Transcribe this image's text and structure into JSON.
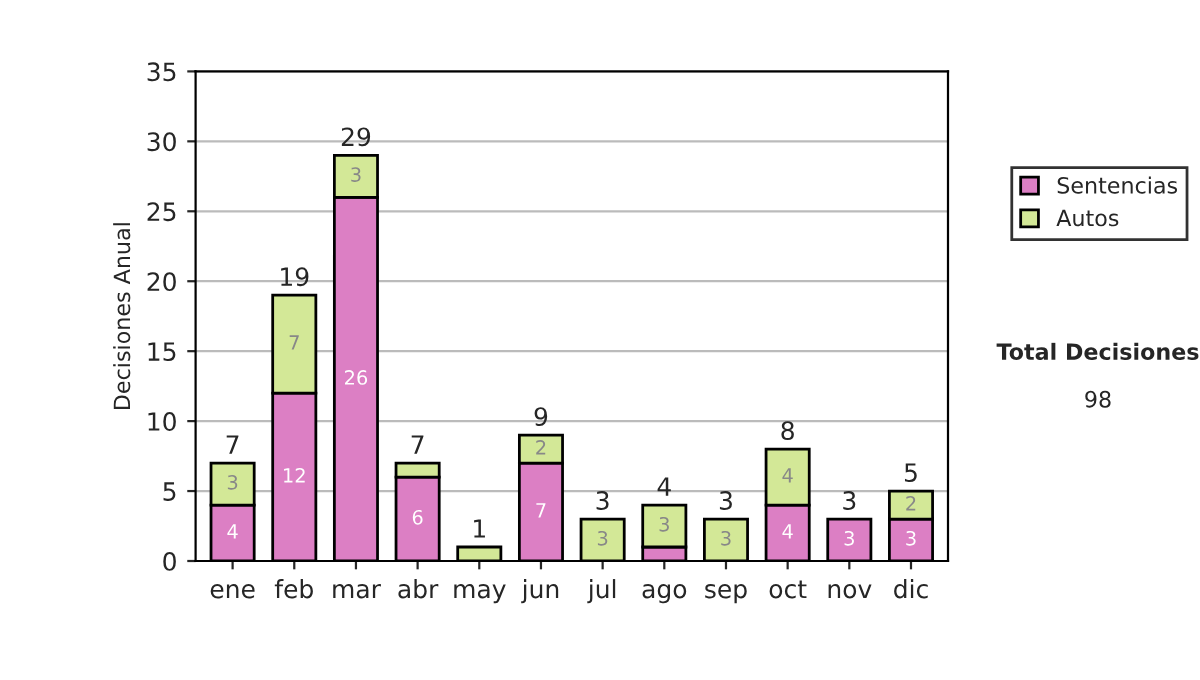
{
  "chart_data": {
    "type": "bar",
    "ylabel": "Decisiones Anual",
    "stacked": true,
    "categories": [
      "ene",
      "feb",
      "mar",
      "abr",
      "may",
      "jun",
      "jul",
      "ago",
      "sep",
      "oct",
      "nov",
      "dic"
    ],
    "series": [
      {
        "name": "Sentencias",
        "color": "#dc7fc4",
        "values": [
          4,
          12,
          26,
          6,
          0,
          7,
          0,
          1,
          0,
          4,
          3,
          3
        ],
        "value_labels": [
          "4",
          "12",
          "26",
          "6",
          null,
          "7",
          null,
          null,
          null,
          "4",
          "3",
          "3"
        ]
      },
      {
        "name": "Autos",
        "color": "#d3e897",
        "values": [
          3,
          7,
          3,
          1,
          1,
          2,
          3,
          3,
          3,
          4,
          0,
          2
        ],
        "value_labels": [
          "3",
          "7",
          "3",
          null,
          null,
          "2",
          "3",
          "3",
          "3",
          "4",
          null,
          "2"
        ]
      }
    ],
    "totals": [
      "7",
      "19",
      "29",
      "7",
      "1",
      "9",
      "3",
      "4",
      "3",
      "8",
      "3",
      "5"
    ],
    "ylim": [
      0,
      35
    ],
    "yticks": [
      0,
      5,
      10,
      15,
      20,
      25,
      30,
      35
    ],
    "grid": "y",
    "legend": "right",
    "annotations": [
      "Total Decisiones",
      "98"
    ]
  }
}
